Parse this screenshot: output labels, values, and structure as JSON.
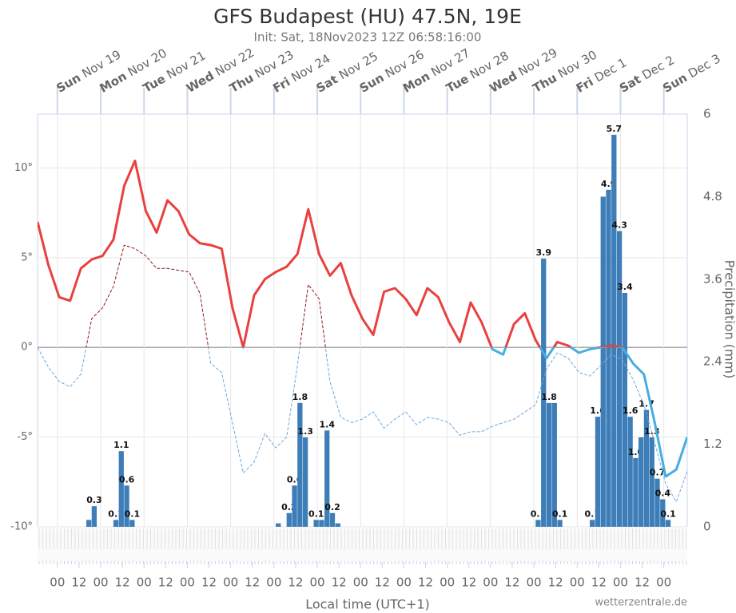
{
  "chart_data": {
    "type": "line",
    "title": "GFS Budapest (HU) 47.5N, 19E",
    "subtitle": "Init: Sat, 18Nov2023 12Z 06:58:16:00",
    "x_label": "Local time (UTC+1)",
    "y2_label": "Precipitation (mm)",
    "credit": "wetterzentrale.de",
    "xlim": [
      "2023-11-18T13:00",
      "2023-12-03T13:00"
    ],
    "ylim": [
      -10,
      13
    ],
    "yticks": [
      {
        "value": -10,
        "label": "-10°"
      },
      {
        "value": -5,
        "label": "-5°"
      },
      {
        "value": 0,
        "label": "0°"
      },
      {
        "value": 5,
        "label": "5°"
      },
      {
        "value": 10,
        "label": "10°"
      }
    ],
    "y2lim": [
      0,
      6
    ],
    "y2ticks": [
      0,
      1.2,
      2.4,
      3.6,
      4.8,
      6
    ],
    "grid": true,
    "day_ticks": [
      {
        "value": "2023-11-19T00:00",
        "weekday": "Sun",
        "date": "Nov 19"
      },
      {
        "value": "2023-11-20T00:00",
        "weekday": "Mon",
        "date": "Nov 20"
      },
      {
        "value": "2023-11-21T00:00",
        "weekday": "Tue",
        "date": "Nov 21"
      },
      {
        "value": "2023-11-22T00:00",
        "weekday": "Wed",
        "date": "Nov 22"
      },
      {
        "value": "2023-11-23T00:00",
        "weekday": "Thu",
        "date": "Nov 23"
      },
      {
        "value": "2023-11-24T00:00",
        "weekday": "Fri",
        "date": "Nov 24"
      },
      {
        "value": "2023-11-25T00:00",
        "weekday": "Sat",
        "date": "Nov 25"
      },
      {
        "value": "2023-11-26T00:00",
        "weekday": "Sun",
        "date": "Nov 26"
      },
      {
        "value": "2023-11-27T00:00",
        "weekday": "Mon",
        "date": "Nov 27"
      },
      {
        "value": "2023-11-28T00:00",
        "weekday": "Tue",
        "date": "Nov 28"
      },
      {
        "value": "2023-11-29T00:00",
        "weekday": "Wed",
        "date": "Nov 29"
      },
      {
        "value": "2023-11-30T00:00",
        "weekday": "Thu",
        "date": "Nov 30"
      },
      {
        "value": "2023-12-01T00:00",
        "weekday": "Fri",
        "date": "Dec 1"
      },
      {
        "value": "2023-12-02T00:00",
        "weekday": "Sat",
        "date": "Dec 2"
      },
      {
        "value": "2023-12-03T00:00",
        "weekday": "Sun",
        "date": "Dec 3"
      }
    ],
    "xticks": [
      {
        "value": "2023-11-19T00:00",
        "label": "00"
      },
      {
        "value": "2023-11-19T12:00",
        "label": "12"
      },
      {
        "value": "2023-11-20T00:00",
        "label": "00"
      },
      {
        "value": "2023-11-20T12:00",
        "label": "12"
      },
      {
        "value": "2023-11-21T00:00",
        "label": "00"
      },
      {
        "value": "2023-11-21T12:00",
        "label": "12"
      },
      {
        "value": "2023-11-22T00:00",
        "label": "00"
      },
      {
        "value": "2023-11-22T12:00",
        "label": "12"
      },
      {
        "value": "2023-11-23T00:00",
        "label": "00"
      },
      {
        "value": "2023-11-23T12:00",
        "label": "12"
      },
      {
        "value": "2023-11-24T00:00",
        "label": "00"
      },
      {
        "value": "2023-11-24T12:00",
        "label": "12"
      },
      {
        "value": "2023-11-25T00:00",
        "label": "00"
      },
      {
        "value": "2023-11-25T12:00",
        "label": "12"
      },
      {
        "value": "2023-11-26T00:00",
        "label": "00"
      },
      {
        "value": "2023-11-26T12:00",
        "label": "12"
      },
      {
        "value": "2023-11-27T00:00",
        "label": "00"
      },
      {
        "value": "2023-11-27T12:00",
        "label": "12"
      },
      {
        "value": "2023-11-28T00:00",
        "label": "00"
      },
      {
        "value": "2023-11-28T12:00",
        "label": "12"
      },
      {
        "value": "2023-11-29T00:00",
        "label": "00"
      },
      {
        "value": "2023-11-29T12:00",
        "label": "12"
      },
      {
        "value": "2023-11-30T00:00",
        "label": "00"
      },
      {
        "value": "2023-11-30T12:00",
        "label": "12"
      },
      {
        "value": "2023-12-01T00:00",
        "label": "00"
      },
      {
        "value": "2023-12-01T12:00",
        "label": "12"
      },
      {
        "value": "2023-12-02T00:00",
        "label": "00"
      },
      {
        "value": "2023-12-02T12:00",
        "label": "12"
      },
      {
        "value": "2023-12-03T00:00",
        "label": "00"
      }
    ],
    "series": [
      {
        "type": "bar",
        "axis": "y2",
        "color": "#3d7db8",
        "x": [
          "2023-11-19T16:00",
          "2023-11-19T19:00",
          "2023-11-20T07:00",
          "2023-11-20T10:00",
          "2023-11-20T13:00",
          "2023-11-20T16:00",
          "2023-11-24T01:00",
          "2023-11-24T07:00",
          "2023-11-24T10:00",
          "2023-11-24T13:00",
          "2023-11-24T16:00",
          "2023-11-24T22:00",
          "2023-11-25T01:00",
          "2023-11-25T04:00",
          "2023-11-25T07:00",
          "2023-11-25T10:00",
          "2023-11-30T01:00",
          "2023-11-30T04:00",
          "2023-11-30T07:00",
          "2023-11-30T10:00",
          "2023-11-30T13:00",
          "2023-12-01T07:00",
          "2023-12-01T10:00",
          "2023-12-01T13:00",
          "2023-12-01T16:00",
          "2023-12-01T19:00",
          "2023-12-01T22:00",
          "2023-12-02T01:00",
          "2023-12-02T04:00",
          "2023-12-02T07:00",
          "2023-12-02T10:00",
          "2023-12-02T13:00",
          "2023-12-02T16:00",
          "2023-12-02T19:00",
          "2023-12-02T22:00",
          "2023-12-03T01:00"
        ],
        "values": [
          0.1,
          0.3,
          0.1,
          1.1,
          0.6,
          0.1,
          0.05,
          0.2,
          0.6,
          1.8,
          1.3,
          0.1,
          0.1,
          1.4,
          0.2,
          0.05,
          0.1,
          3.9,
          1.8,
          1.8,
          0.1,
          0.1,
          1.6,
          4.8,
          4.9,
          5.7,
          4.3,
          3.4,
          1.6,
          1.0,
          1.3,
          1.7,
          1.3,
          0.7,
          0.4,
          0.1
        ],
        "value_labels": [
          null,
          "0.3",
          "0.1",
          "1.1",
          "0.6",
          "0.1",
          null,
          "0.2",
          "0.6",
          "1.8",
          "1.3",
          "0.1",
          null,
          "1.4",
          "0.2",
          null,
          "0.1",
          "3.9",
          "1.8",
          null,
          "0.1",
          "0.1",
          "1.6",
          null,
          "4.9",
          "5.7",
          "4.3",
          "3.4",
          "1.6",
          "1.0",
          null,
          "1.7",
          "1.3",
          "0.7",
          "0.4",
          "0.1"
        ]
      },
      {
        "type": "line",
        "color": "#8b1a1a",
        "color_below_zero": "#6fa8dc",
        "dashed": true,
        "width": 1,
        "x": [
          "2023-11-18T13:00",
          "2023-11-18T19:00",
          "2023-11-19T01:00",
          "2023-11-19T07:00",
          "2023-11-19T13:00",
          "2023-11-19T19:00",
          "2023-11-20T01:00",
          "2023-11-20T07:00",
          "2023-11-20T13:00",
          "2023-11-20T19:00",
          "2023-11-21T01:00",
          "2023-11-21T07:00",
          "2023-11-21T13:00",
          "2023-11-21T19:00",
          "2023-11-22T01:00",
          "2023-11-22T07:00",
          "2023-11-22T13:00",
          "2023-11-22T19:00",
          "2023-11-23T01:00",
          "2023-11-23T07:00",
          "2023-11-23T13:00",
          "2023-11-23T19:00",
          "2023-11-24T01:00",
          "2023-11-24T07:00",
          "2023-11-24T13:00",
          "2023-11-24T19:00",
          "2023-11-25T01:00",
          "2023-11-25T07:00",
          "2023-11-25T13:00",
          "2023-11-25T19:00",
          "2023-11-26T01:00",
          "2023-11-26T07:00",
          "2023-11-26T13:00",
          "2023-11-26T19:00",
          "2023-11-27T01:00",
          "2023-11-27T07:00",
          "2023-11-27T13:00",
          "2023-11-27T19:00",
          "2023-11-28T01:00",
          "2023-11-28T07:00",
          "2023-11-28T13:00",
          "2023-11-28T19:00",
          "2023-11-29T01:00",
          "2023-11-29T07:00",
          "2023-11-29T13:00",
          "2023-11-29T19:00",
          "2023-11-30T01:00",
          "2023-11-30T07:00",
          "2023-11-30T13:00",
          "2023-11-30T19:00",
          "2023-12-01T01:00",
          "2023-12-01T07:00",
          "2023-12-01T13:00",
          "2023-12-01T19:00",
          "2023-12-02T01:00",
          "2023-12-02T07:00",
          "2023-12-02T13:00",
          "2023-12-02T19:00",
          "2023-12-03T01:00",
          "2023-12-03T07:00",
          "2023-12-03T13:00"
        ],
        "values": [
          0.0,
          -1.1,
          -1.9,
          -2.2,
          -1.5,
          1.6,
          2.2,
          3.4,
          5.7,
          5.5,
          5.1,
          4.4,
          4.4,
          4.3,
          4.2,
          3.0,
          -0.9,
          -1.4,
          -4.2,
          -7.0,
          -6.4,
          -4.8,
          -5.6,
          -5.0,
          -1.0,
          3.5,
          2.7,
          -1.9,
          -3.9,
          -4.2,
          -4.0,
          -3.6,
          -4.5,
          -4.0,
          -3.6,
          -4.3,
          -3.9,
          -4.0,
          -4.2,
          -4.9,
          -4.7,
          -4.7,
          -4.4,
          -4.2,
          -4.0,
          -3.6,
          -3.2,
          -1.2,
          -0.3,
          -0.6,
          -1.4,
          -1.6,
          -1.0,
          -0.4,
          -0.7,
          -1.8,
          -3.2,
          -5.3,
          -7.6,
          -8.6,
          -6.9
        ]
      },
      {
        "type": "line",
        "color": "#e8413f",
        "color_below_zero": "#45aee0",
        "dashed": false,
        "width": 3,
        "x": [
          "2023-11-18T13:00",
          "2023-11-18T19:00",
          "2023-11-19T01:00",
          "2023-11-19T07:00",
          "2023-11-19T13:00",
          "2023-11-19T19:00",
          "2023-11-20T01:00",
          "2023-11-20T07:00",
          "2023-11-20T13:00",
          "2023-11-20T19:00",
          "2023-11-21T01:00",
          "2023-11-21T07:00",
          "2023-11-21T13:00",
          "2023-11-21T19:00",
          "2023-11-22T01:00",
          "2023-11-22T07:00",
          "2023-11-22T13:00",
          "2023-11-22T19:00",
          "2023-11-23T01:00",
          "2023-11-23T07:00",
          "2023-11-23T13:00",
          "2023-11-23T19:00",
          "2023-11-24T01:00",
          "2023-11-24T07:00",
          "2023-11-24T13:00",
          "2023-11-24T19:00",
          "2023-11-25T01:00",
          "2023-11-25T07:00",
          "2023-11-25T13:00",
          "2023-11-25T19:00",
          "2023-11-26T01:00",
          "2023-11-26T07:00",
          "2023-11-26T13:00",
          "2023-11-26T19:00",
          "2023-11-27T01:00",
          "2023-11-27T07:00",
          "2023-11-27T13:00",
          "2023-11-27T19:00",
          "2023-11-28T01:00",
          "2023-11-28T07:00",
          "2023-11-28T13:00",
          "2023-11-28T19:00",
          "2023-11-29T01:00",
          "2023-11-29T07:00",
          "2023-11-29T13:00",
          "2023-11-29T19:00",
          "2023-11-30T01:00",
          "2023-11-30T07:00",
          "2023-11-30T13:00",
          "2023-11-30T19:00",
          "2023-12-01T01:00",
          "2023-12-01T07:00",
          "2023-12-01T13:00",
          "2023-12-01T19:00",
          "2023-12-02T01:00",
          "2023-12-02T07:00",
          "2023-12-02T13:00",
          "2023-12-02T19:00",
          "2023-12-03T01:00",
          "2023-12-03T07:00",
          "2023-12-03T13:00"
        ],
        "values": [
          7.0,
          4.6,
          2.8,
          2.6,
          4.4,
          4.9,
          5.1,
          6.0,
          9.0,
          10.4,
          7.6,
          6.4,
          8.2,
          7.6,
          6.3,
          5.8,
          5.7,
          5.5,
          2.2,
          0.0,
          2.9,
          3.8,
          4.2,
          4.5,
          5.2,
          7.7,
          5.2,
          4.0,
          4.7,
          2.9,
          1.6,
          0.7,
          3.1,
          3.3,
          2.7,
          1.8,
          3.3,
          2.8,
          1.4,
          0.3,
          2.5,
          1.4,
          -0.1,
          -0.4,
          1.3,
          1.9,
          0.4,
          -0.6,
          0.3,
          0.1,
          -0.3,
          -0.1,
          0.0,
          0.1,
          0.0,
          -0.9,
          -1.5,
          -4.2,
          -7.2,
          -6.8,
          -5.0
        ]
      }
    ]
  }
}
